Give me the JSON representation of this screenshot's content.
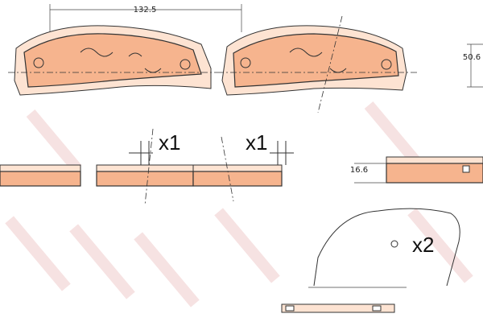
{
  "dimensions": {
    "length": "132.5",
    "height": "50.6",
    "thickness": "16.6"
  },
  "quantities": [
    "x1",
    "x1",
    "x2"
  ]
}
